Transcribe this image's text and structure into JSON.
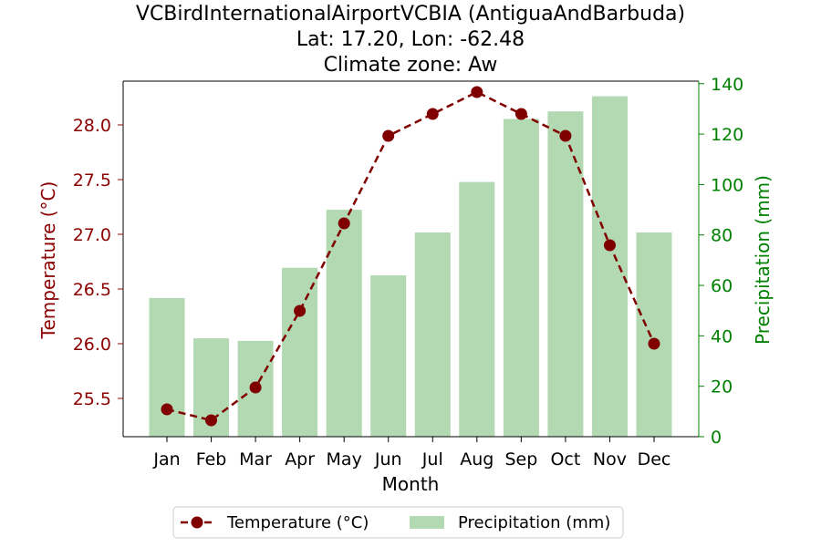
{
  "chart_data": {
    "type": "bar+line",
    "title_lines": [
      "VCBirdInternationalAirportVCBIA (AntiguaAndBarbuda)",
      "Lat: 17.20, Lon: -62.48",
      "Climate zone: Aw"
    ],
    "xlabel": "Month",
    "categories": [
      "Jan",
      "Feb",
      "Mar",
      "Apr",
      "May",
      "Jun",
      "Jul",
      "Aug",
      "Sep",
      "Oct",
      "Nov",
      "Dec"
    ],
    "left_axis": {
      "label": "Temperature (°C)",
      "color": "#8b0000",
      "ylim": [
        25.15,
        28.4
      ],
      "ticks": [
        25.5,
        26.0,
        26.5,
        27.0,
        27.5,
        28.0
      ],
      "tick_labels": [
        "25.5",
        "26.0",
        "26.5",
        "27.0",
        "27.5",
        "28.0"
      ]
    },
    "right_axis": {
      "label": "Precipitation (mm)",
      "color": "#008000",
      "ylim": [
        0,
        141
      ],
      "ticks": [
        0,
        20,
        40,
        60,
        80,
        100,
        120,
        140
      ],
      "tick_labels": [
        "0",
        "20",
        "40",
        "60",
        "80",
        "100",
        "120",
        "140"
      ]
    },
    "series": [
      {
        "name": "Temperature (°C)",
        "kind": "line",
        "axis": "left",
        "color": "#800000",
        "line_style": "dashed",
        "marker": "circle",
        "values": [
          25.4,
          25.3,
          25.6,
          26.3,
          27.1,
          27.9,
          28.1,
          28.3,
          28.1,
          27.9,
          26.9,
          26.0
        ]
      },
      {
        "name": "Precipitation (mm)",
        "kind": "bar",
        "axis": "right",
        "color": "#b2d9b2",
        "values": [
          55,
          39,
          38,
          67,
          90,
          64,
          81,
          101,
          126,
          129,
          135,
          81
        ]
      }
    ],
    "legend": {
      "placement": "bottom-center",
      "entries": [
        "Temperature (°C)",
        "Precipitation (mm)"
      ]
    },
    "grid": false
  }
}
